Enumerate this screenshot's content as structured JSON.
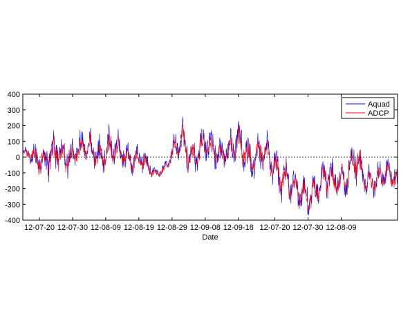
{
  "chart_data": {
    "type": "line",
    "title": "",
    "xlabel": "Date",
    "ylabel": "",
    "ylim": [
      -400,
      400
    ],
    "yticks": [
      400,
      300,
      200,
      100,
      0,
      -100,
      -200,
      -300,
      -400
    ],
    "xtick_labels": [
      "12-07-20",
      "12-07-30",
      "12-08-09",
      "12-08-19",
      "12-08-29",
      "12-09-08",
      "12-09-18",
      "12-07-20",
      "12-07-30",
      "12-08-09"
    ],
    "xlim_index": [
      0,
      113
    ],
    "xtick_positions": [
      5,
      15,
      25,
      35,
      45,
      55,
      65,
      76,
      86,
      96
    ],
    "reference_line_y": 0,
    "legend_position": "top-right",
    "grid": false,
    "series": [
      {
        "name": "Aquad",
        "color": "#0000ff",
        "envelope": [
          {
            "x": 0,
            "v": 20,
            "a": 40
          },
          {
            "x": 4,
            "v": 10,
            "a": 90
          },
          {
            "x": 8,
            "v": -10,
            "a": 150
          },
          {
            "x": 12,
            "v": 10,
            "a": 120
          },
          {
            "x": 16,
            "v": 40,
            "a": 110
          },
          {
            "x": 20,
            "v": 60,
            "a": 110
          },
          {
            "x": 24,
            "v": 40,
            "a": 130
          },
          {
            "x": 28,
            "v": 30,
            "a": 140
          },
          {
            "x": 32,
            "v": 10,
            "a": 110
          },
          {
            "x": 36,
            "v": -40,
            "a": 90
          },
          {
            "x": 40,
            "v": -100,
            "a": 40
          },
          {
            "x": 43,
            "v": -60,
            "a": 40
          },
          {
            "x": 46,
            "v": 40,
            "a": 110
          },
          {
            "x": 48,
            "v": 120,
            "a": 140
          },
          {
            "x": 51,
            "v": 20,
            "a": 140
          },
          {
            "x": 54,
            "v": 40,
            "a": 130
          },
          {
            "x": 58,
            "v": 60,
            "a": 120
          },
          {
            "x": 62,
            "v": 30,
            "a": 120
          },
          {
            "x": 66,
            "v": 60,
            "a": 170
          },
          {
            "x": 70,
            "v": 30,
            "a": 140
          },
          {
            "x": 74,
            "v": -20,
            "a": 150
          },
          {
            "x": 78,
            "v": -80,
            "a": 160
          },
          {
            "x": 82,
            "v": -220,
            "a": 150
          },
          {
            "x": 86,
            "v": -230,
            "a": 130
          },
          {
            "x": 90,
            "v": -170,
            "a": 130
          },
          {
            "x": 94,
            "v": -140,
            "a": 120
          },
          {
            "x": 98,
            "v": -100,
            "a": 140
          },
          {
            "x": 100,
            "v": -50,
            "a": 160
          },
          {
            "x": 102,
            "v": -90,
            "a": 130
          },
          {
            "x": 104,
            "v": -130,
            "a": 100
          }
        ]
      },
      {
        "name": "ADCP",
        "color": "#ff0000",
        "envelope": [
          {
            "x": 0,
            "v": 15,
            "a": 35
          },
          {
            "x": 4,
            "v": 5,
            "a": 80
          },
          {
            "x": 8,
            "v": -15,
            "a": 140
          },
          {
            "x": 12,
            "v": 5,
            "a": 110
          },
          {
            "x": 16,
            "v": 35,
            "a": 100
          },
          {
            "x": 20,
            "v": 55,
            "a": 100
          },
          {
            "x": 24,
            "v": 35,
            "a": 120
          },
          {
            "x": 28,
            "v": 25,
            "a": 120
          },
          {
            "x": 32,
            "v": 5,
            "a": 100
          },
          {
            "x": 36,
            "v": -45,
            "a": 80
          },
          {
            "x": 40,
            "v": -105,
            "a": 35
          },
          {
            "x": 43,
            "v": -65,
            "a": 35
          },
          {
            "x": 46,
            "v": 35,
            "a": 100
          },
          {
            "x": 48,
            "v": 115,
            "a": 130
          },
          {
            "x": 51,
            "v": 15,
            "a": 120
          },
          {
            "x": 54,
            "v": 35,
            "a": 110
          },
          {
            "x": 58,
            "v": 55,
            "a": 100
          },
          {
            "x": 62,
            "v": 25,
            "a": 100
          },
          {
            "x": 66,
            "v": 55,
            "a": 150
          },
          {
            "x": 70,
            "v": 25,
            "a": 120
          },
          {
            "x": 74,
            "v": -25,
            "a": 120
          },
          {
            "x": 78,
            "v": -85,
            "a": 130
          },
          {
            "x": 82,
            "v": -225,
            "a": 140
          },
          {
            "x": 86,
            "v": -235,
            "a": 120
          },
          {
            "x": 90,
            "v": -175,
            "a": 120
          },
          {
            "x": 94,
            "v": -145,
            "a": 110
          },
          {
            "x": 98,
            "v": -105,
            "a": 120
          },
          {
            "x": 100,
            "v": -55,
            "a": 150
          },
          {
            "x": 102,
            "v": -95,
            "a": 120
          },
          {
            "x": 104,
            "v": -135,
            "a": 90
          }
        ]
      }
    ]
  }
}
